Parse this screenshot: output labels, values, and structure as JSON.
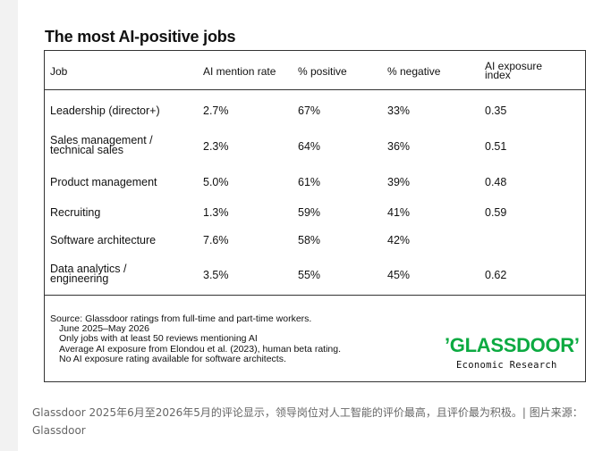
{
  "title": "The most AI-positive jobs",
  "table": {
    "headers": [
      "Job",
      "AI mention rate",
      "% positive",
      "% negative",
      "AI exposure\nindex"
    ],
    "header_job": "Job",
    "header_mention": "AI mention rate",
    "header_positive": "% positive",
    "header_negative": "% negative",
    "header_exposure_1": "AI exposure",
    "header_exposure_2": "index",
    "rows": [
      {
        "job_1": "Leadership (director+)",
        "job_2": "",
        "mention": "2.7%",
        "positive": "67%",
        "negative": "33%",
        "exposure": "0.35"
      },
      {
        "job_1": "Sales management /",
        "job_2": "technical sales",
        "mention": "2.3%",
        "positive": "64%",
        "negative": "36%",
        "exposure": "0.51"
      },
      {
        "job_1": "Product management",
        "job_2": "",
        "mention": "5.0%",
        "positive": "61%",
        "negative": "39%",
        "exposure": "0.48"
      },
      {
        "job_1": "Recruiting",
        "job_2": "",
        "mention": "1.3%",
        "positive": "59%",
        "negative": "41%",
        "exposure": "0.59"
      },
      {
        "job_1": "Software architecture",
        "job_2": "",
        "mention": "7.6%",
        "positive": "58%",
        "negative": "42%",
        "exposure": ""
      },
      {
        "job_1": "Data analytics /",
        "job_2": "engineering",
        "mention": "3.5%",
        "positive": "55%",
        "negative": "45%",
        "exposure": "0.62"
      }
    ]
  },
  "source": {
    "line1": "Source: Glassdoor ratings from full-time and part-time workers.",
    "line2": "June 2025–May 2026",
    "line3": "Only jobs with at least 50 reviews mentioning AI",
    "line4": "Average AI exposure from Elondou et al. (2023), human beta rating.",
    "line5": "No AI exposure rating available for software architects."
  },
  "logo": {
    "word": "’GLASSDOOR’",
    "subtitle": "Economic Research",
    "color": "#0caa41"
  },
  "caption": "Glassdoor 2025年6月至2026年5月的评论显示，领导岗位对人工智能的评价最高，且评价最为积极。| 图片来源：Glassdoor"
}
